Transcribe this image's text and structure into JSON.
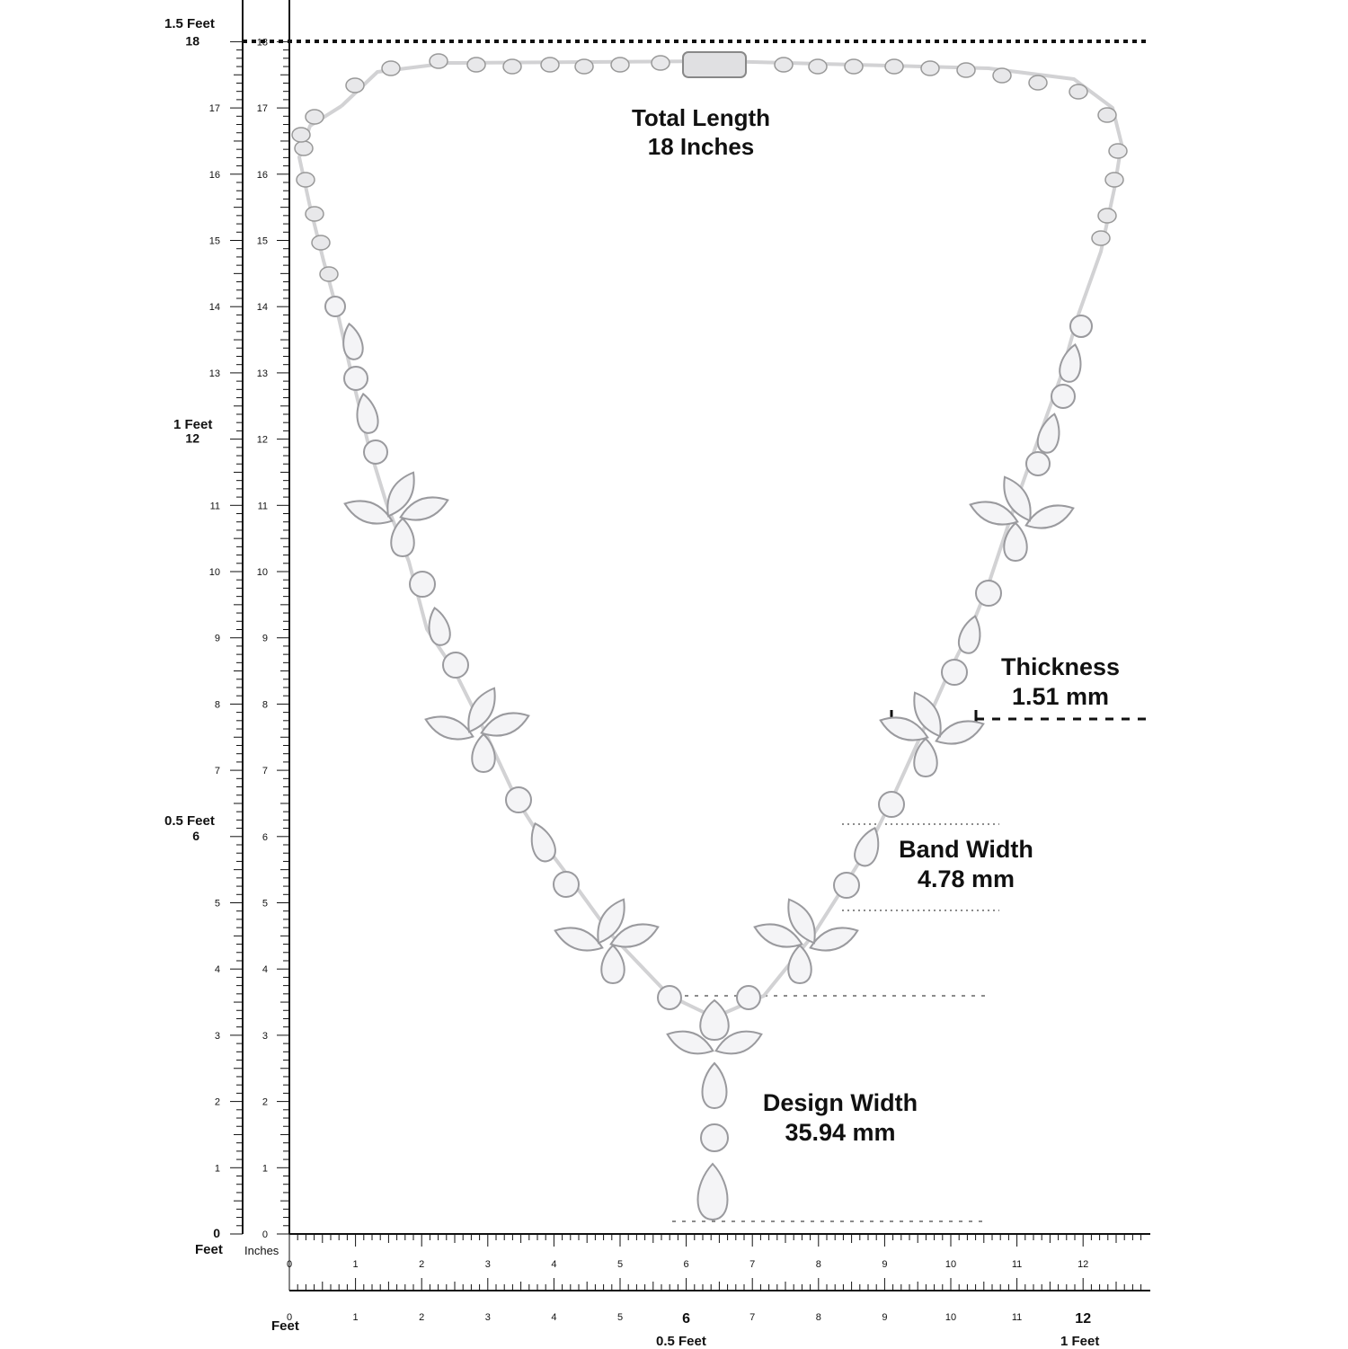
{
  "labels": {
    "total_length": {
      "title": "Total Length",
      "value": "18 Inches"
    },
    "thickness": {
      "title": "Thickness",
      "value": "1.51 mm"
    },
    "band_width": {
      "title": "Band Width",
      "value": "4.78 mm"
    },
    "design_width": {
      "title": "Design Width",
      "value": "35.94 mm"
    }
  },
  "ruler": {
    "inch_marks": [
      "0",
      "1",
      "2",
      "3",
      "4",
      "5",
      "6",
      "7",
      "8",
      "9",
      "10",
      "11",
      "12",
      "13",
      "14",
      "15",
      "16",
      "17",
      "18"
    ],
    "feet_marks": {
      "zero": "0",
      "half": "0.5 Feet",
      "one": "1 Feet",
      "one_half": "1.5 Feet"
    },
    "feet_label": "Feet",
    "inches_label": "Inches"
  },
  "colors": {
    "metal": "#d2d2d4",
    "stone": "#f4f4f6",
    "ink": "#111111"
  }
}
